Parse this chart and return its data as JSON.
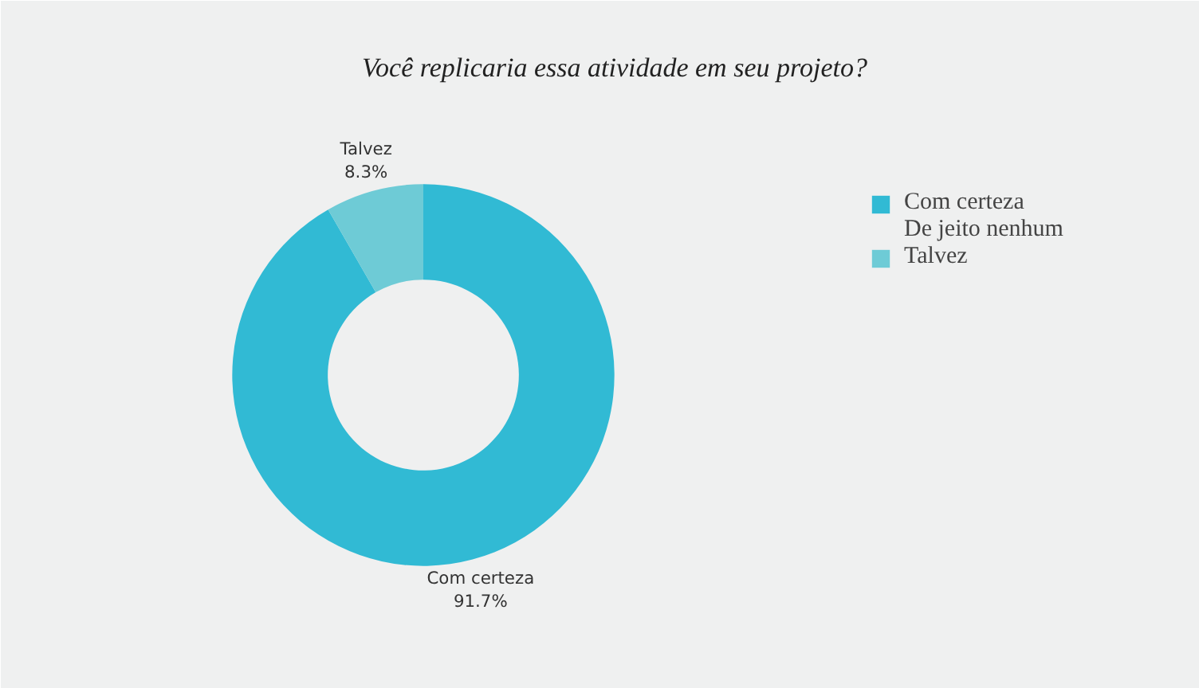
{
  "chart_data": {
    "type": "donut",
    "title": "Você replicaria essa atividade em seu projeto?",
    "categories": [
      "Com certeza",
      "De jeito nenhum",
      "Talvez"
    ],
    "values": [
      91.7,
      0,
      8.3
    ],
    "colors": [
      "#31bad4",
      "#6ecbd6",
      "#6ecbd6"
    ],
    "value_labels": [
      "91.7%",
      null,
      "8.3%"
    ],
    "legend": "top right"
  }
}
